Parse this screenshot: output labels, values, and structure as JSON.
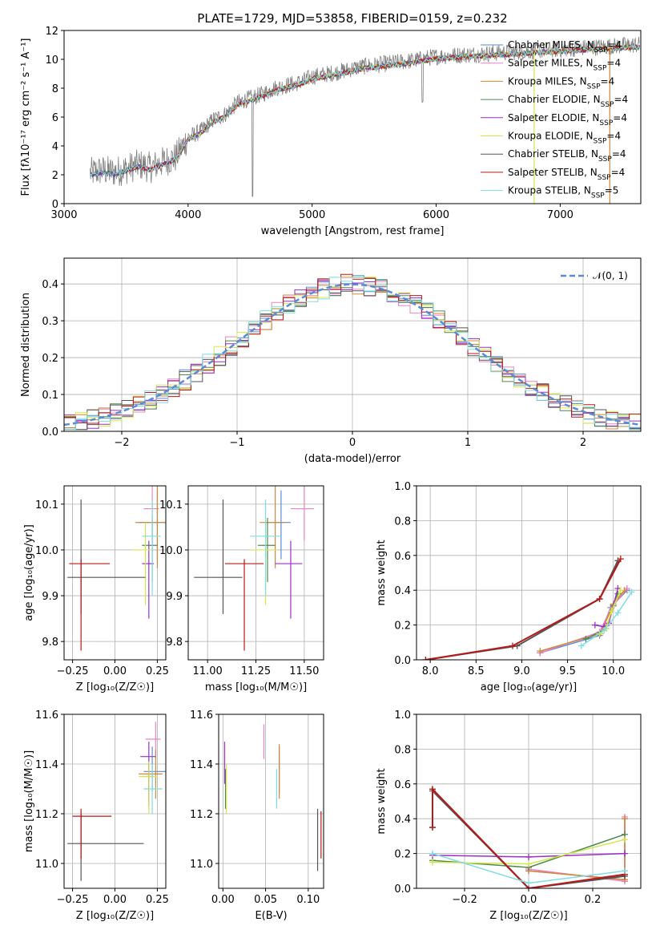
{
  "title": "PLATE=1729, MJD=53858, FIBERID=0159, z=0.232",
  "colors": {
    "Chabrier MILES": "#5b8bd6",
    "Salpeter MILES": "#ee82c4",
    "Kroupa MILES": "#d2873a",
    "Chabrier ELODIE": "#4f8a4f",
    "Salpeter ELODIE": "#9a2fc9",
    "Kroupa ELODIE": "#d4e84a",
    "Chabrier STELIB": "#555555",
    "Salpeter STELIB": "#b81818",
    "Kroupa STELIB": "#7fdde3",
    "gaussian": "#5b8bd6"
  },
  "chart_data": [
    {
      "id": "spectrum",
      "type": "line",
      "title": "PLATE=1729, MJD=53858, FIBERID=0159, z=0.232",
      "xlabel": "wavelength [Angstrom, rest frame]",
      "ylabel": "Flux [fλ10⁻¹⁷ erg cm⁻² s⁻¹ A⁻¹]",
      "xlim": [
        3000,
        7650
      ],
      "ylim": [
        0,
        12
      ],
      "xticks": [
        "3000",
        "4000",
        "5000",
        "6000",
        "7000"
      ],
      "yticks": [
        "0",
        "2",
        "4",
        "6",
        "8",
        "10",
        "12"
      ],
      "grid": false,
      "legend_position": "right",
      "legend": [
        "Chabrier MILES, N_SSP=4",
        "Salpeter MILES, N_SSP=4",
        "Kroupa MILES, N_SSP=4",
        "Chabrier ELODIE, N_SSP=4",
        "Salpeter ELODIE, N_SSP=4",
        "Kroupa ELODIE, N_SSP=4",
        "Chabrier STELIB, N_SSP=4",
        "Salpeter STELIB, N_SSP=4",
        "Kroupa STELIB, N_SSP=5"
      ],
      "data_envelope": {
        "x": [
          3200,
          3300,
          3400,
          3500,
          3600,
          3700,
          3800,
          3900,
          4000,
          4100,
          4200,
          4300,
          4400,
          4500,
          4600,
          4700,
          4800,
          4900,
          5000,
          5200,
          5400,
          5600,
          5800,
          6000,
          6200,
          6400,
          6600,
          6800,
          7000,
          7200,
          7400,
          7600
        ],
        "y": [
          2.1,
          2.3,
          2.2,
          2.4,
          2.7,
          2.5,
          2.9,
          3.2,
          4.6,
          5.0,
          5.8,
          6.2,
          7.0,
          7.3,
          7.6,
          8.0,
          8.2,
          8.4,
          8.8,
          9.1,
          9.5,
          9.7,
          9.9,
          10.2,
          10.3,
          10.4,
          10.5,
          10.6,
          10.7,
          10.8,
          10.9,
          11.0
        ]
      }
    },
    {
      "id": "residuals",
      "type": "line",
      "xlabel": "(data-model)/error",
      "ylabel": "Normed distribution",
      "xlim": [
        -2.5,
        2.5
      ],
      "ylim": [
        0,
        0.47
      ],
      "xticks": [
        "−2",
        "−1",
        "0",
        "1",
        "2"
      ],
      "yticks": [
        "0.0",
        "0.1",
        "0.2",
        "0.3",
        "0.4"
      ],
      "grid": true,
      "legend_position": "top-right",
      "legend": [
        "𝒩(0, 1)"
      ],
      "gaussian": {
        "mean": 0,
        "sigma": 1
      }
    },
    {
      "id": "age-vs-Z",
      "type": "scatter",
      "xlabel": "Z [log₁₀(Z/Z☉)]",
      "ylabel": "age  [log₁₀(age/yr)]",
      "xlim": [
        -0.3,
        0.3
      ],
      "ylim": [
        9.76,
        10.14
      ],
      "xticks": [
        "−0.25",
        "0.00",
        "0.25"
      ],
      "yticks": [
        "9.8",
        "9.9",
        "10.0",
        "10.1"
      ],
      "grid": true,
      "points": [
        {
          "model": "Chabrier MILES",
          "x": 0.25,
          "xerr": [
            0.12,
            0.05
          ],
          "y": 10.06,
          "yerr": [
            0.08,
            0.07
          ]
        },
        {
          "model": "Salpeter MILES",
          "x": 0.22,
          "xerr": [
            0.05,
            0.04
          ],
          "y": 10.09,
          "yerr": [
            0.07,
            0.05
          ]
        },
        {
          "model": "Kroupa MILES",
          "x": 0.25,
          "xerr": [
            0.13,
            0.05
          ],
          "y": 10.06,
          "yerr": [
            0.1,
            0.08
          ]
        },
        {
          "model": "Chabrier ELODIE",
          "x": 0.22,
          "xerr": [
            0.06,
            0.03
          ],
          "y": 10.01,
          "yerr": [
            0.08,
            0.06
          ]
        },
        {
          "model": "Salpeter ELODIE",
          "x": 0.2,
          "xerr": [
            0.04,
            0.03
          ],
          "y": 9.97,
          "yerr": [
            0.12,
            0.05
          ]
        },
        {
          "model": "Kroupa ELODIE",
          "x": 0.18,
          "xerr": [
            0.08,
            0.04
          ],
          "y": 10.0,
          "yerr": [
            0.12,
            0.06
          ]
        },
        {
          "model": "Chabrier STELIB",
          "x": -0.2,
          "xerr": [
            0.08,
            0.38
          ],
          "y": 9.94,
          "yerr": [
            0.08,
            0.17
          ]
        },
        {
          "model": "Salpeter STELIB",
          "x": -0.2,
          "xerr": [
            0.07,
            0.17
          ],
          "y": 9.97,
          "yerr": [
            0.19,
            0.01
          ]
        },
        {
          "model": "Kroupa STELIB",
          "x": 0.22,
          "xerr": [
            0.06,
            0.05
          ],
          "y": 10.03,
          "yerr": [
            0.13,
            0.08
          ]
        }
      ]
    },
    {
      "id": "age-vs-mass",
      "type": "scatter",
      "xlabel": "mass [log₁₀(M/M☉)]",
      "ylabel": "",
      "xlim": [
        10.9,
        11.6
      ],
      "ylim": [
        9.76,
        10.14
      ],
      "xticks": [
        "11.00",
        "11.25",
        "11.50"
      ],
      "yticks": [
        "9.8",
        "9.9",
        "10.0",
        "10.1"
      ],
      "grid": true,
      "points": [
        {
          "model": "Chabrier MILES",
          "x": 11.38,
          "xerr": [
            0.08,
            0.05
          ],
          "y": 10.06,
          "yerr": [
            0.08,
            0.07
          ]
        },
        {
          "model": "Salpeter MILES",
          "x": 11.5,
          "xerr": [
            0.07,
            0.05
          ],
          "y": 10.09,
          "yerr": [
            0.07,
            0.05
          ]
        },
        {
          "model": "Kroupa MILES",
          "x": 11.35,
          "xerr": [
            0.08,
            0.05
          ],
          "y": 10.06,
          "yerr": [
            0.1,
            0.08
          ]
        },
        {
          "model": "Chabrier ELODIE",
          "x": 11.31,
          "xerr": [
            0.05,
            0.04
          ],
          "y": 10.01,
          "yerr": [
            0.08,
            0.06
          ]
        },
        {
          "model": "Salpeter ELODIE",
          "x": 11.43,
          "xerr": [
            0.08,
            0.06
          ],
          "y": 9.97,
          "yerr": [
            0.12,
            0.05
          ]
        },
        {
          "model": "Kroupa ELODIE",
          "x": 11.3,
          "xerr": [
            0.08,
            0.06
          ],
          "y": 10.0,
          "yerr": [
            0.12,
            0.06
          ]
        },
        {
          "model": "Chabrier STELIB",
          "x": 11.08,
          "xerr": [
            0.15,
            0.1
          ],
          "y": 9.94,
          "yerr": [
            0.08,
            0.17
          ]
        },
        {
          "model": "Salpeter STELIB",
          "x": 11.19,
          "xerr": [
            0.1,
            0.1
          ],
          "y": 9.97,
          "yerr": [
            0.19,
            0.01
          ]
        },
        {
          "model": "Kroupa STELIB",
          "x": 11.3,
          "xerr": [
            0.08,
            0.08
          ],
          "y": 10.03,
          "yerr": [
            0.13,
            0.08
          ]
        }
      ]
    },
    {
      "id": "mass-weight-vs-age",
      "type": "line",
      "xlabel": "age  [log₁₀(age/yr)]",
      "ylabel": "mass weight",
      "xlim": [
        7.85,
        10.3
      ],
      "ylim": [
        0,
        1
      ],
      "xticks": [
        "8.0",
        "8.5",
        "9.0",
        "9.5",
        "10.0"
      ],
      "yticks": [
        "0.0",
        "0.2",
        "0.4",
        "0.6",
        "0.8",
        "1.0"
      ],
      "grid": true,
      "series": [
        {
          "model": "Chabrier MILES",
          "x": [
            9.2,
            9.85,
            9.97,
            10.15
          ],
          "y": [
            0.04,
            0.14,
            0.3,
            0.4
          ]
        },
        {
          "model": "Salpeter MILES",
          "x": [
            9.2,
            9.85,
            9.98,
            10.15
          ],
          "y": [
            0.04,
            0.16,
            0.3,
            0.41
          ]
        },
        {
          "model": "Kroupa MILES",
          "x": [
            9.2,
            9.86,
            10.0,
            10.12
          ],
          "y": [
            0.05,
            0.15,
            0.32,
            0.4
          ]
        },
        {
          "model": "Chabrier ELODIE",
          "x": [
            9.7,
            9.92,
            10.0,
            10.05
          ],
          "y": [
            0.12,
            0.18,
            0.31,
            0.38
          ]
        },
        {
          "model": "Salpeter ELODIE",
          "x": [
            9.8,
            9.9,
            9.95,
            10.05
          ],
          "y": [
            0.2,
            0.19,
            0.21,
            0.41
          ]
        },
        {
          "model": "Kroupa ELODIE",
          "x": [
            9.85,
            9.92,
            9.98,
            10.08
          ],
          "y": [
            0.15,
            0.18,
            0.28,
            0.4
          ]
        },
        {
          "model": "Chabrier STELIB",
          "x": [
            7.95,
            8.95,
            9.85,
            10.05
          ],
          "y": [
            0.0,
            0.08,
            0.35,
            0.57
          ]
        },
        {
          "model": "Salpeter STELIB",
          "x": [
            7.95,
            8.9,
            9.85,
            10.08
          ],
          "y": [
            0.0,
            0.08,
            0.35,
            0.58
          ]
        },
        {
          "model": "Kroupa STELIB",
          "x": [
            9.65,
            9.9,
            10.05,
            10.2
          ],
          "y": [
            0.08,
            0.17,
            0.27,
            0.39
          ]
        }
      ]
    },
    {
      "id": "mass-vs-Z",
      "type": "scatter",
      "xlabel": "Z [log₁₀(Z/Z☉)]",
      "ylabel": "mass [log₁₀(M/M☉)]",
      "xlim": [
        -0.3,
        0.3
      ],
      "ylim": [
        10.9,
        11.6
      ],
      "xticks": [
        "−0.25",
        "0.00",
        "0.25"
      ],
      "yticks": [
        "11.0",
        "11.2",
        "11.4",
        "11.6"
      ],
      "grid": true,
      "points": [
        {
          "model": "Chabrier MILES",
          "x": 0.22,
          "xerr": [
            0.05,
            0.08
          ],
          "y": 11.37,
          "yerr": [
            0.08,
            0.1
          ]
        },
        {
          "model": "Salpeter MILES",
          "x": 0.24,
          "xerr": [
            0.06,
            0.03
          ],
          "y": 11.5,
          "yerr": [
            0.08,
            0.07
          ]
        },
        {
          "model": "Kroupa MILES",
          "x": 0.24,
          "xerr": [
            0.1,
            0.04
          ],
          "y": 11.36,
          "yerr": [
            0.1,
            0.1
          ]
        },
        {
          "model": "Chabrier ELODIE",
          "x": 0.2,
          "xerr": [
            0.04,
            0.03
          ],
          "y": 11.35,
          "yerr": [
            0.1,
            0.05
          ]
        },
        {
          "model": "Salpeter ELODIE",
          "x": 0.2,
          "xerr": [
            0.05,
            0.04
          ],
          "y": 11.43,
          "yerr": [
            0.2,
            0.06
          ]
        },
        {
          "model": "Kroupa ELODIE",
          "x": 0.2,
          "xerr": [
            0.06,
            0.05
          ],
          "y": 11.35,
          "yerr": [
            0.15,
            0.06
          ]
        },
        {
          "model": "Chabrier STELIB",
          "x": -0.2,
          "xerr": [
            0.08,
            0.37
          ],
          "y": 11.08,
          "yerr": [
            0.15,
            0.12
          ]
        },
        {
          "model": "Salpeter STELIB",
          "x": -0.2,
          "xerr": [
            0.05,
            0.18
          ],
          "y": 11.19,
          "yerr": [
            0.17,
            0.03
          ]
        },
        {
          "model": "Kroupa STELIB",
          "x": 0.22,
          "xerr": [
            0.05,
            0.06
          ],
          "y": 11.3,
          "yerr": [
            0.1,
            0.1
          ]
        }
      ]
    },
    {
      "id": "mass-vs-ebv",
      "type": "scatter",
      "xlabel": "E(B-V)",
      "ylabel": "",
      "xlim": [
        -0.005,
        0.118
      ],
      "ylim": [
        10.9,
        11.6
      ],
      "xticks": [
        "0.00",
        "0.05",
        "0.10"
      ],
      "yticks": [
        "11.0",
        "11.2",
        "11.4",
        "11.6"
      ],
      "grid": true,
      "points": [
        {
          "model": "Chabrier MILES",
          "x": 0.066,
          "y": 11.36,
          "yerr": [
            0.08,
            0.11
          ]
        },
        {
          "model": "Salpeter MILES",
          "x": 0.048,
          "y": 11.48,
          "yerr": [
            0.06,
            0.08
          ]
        },
        {
          "model": "Kroupa MILES",
          "x": 0.066,
          "y": 11.36,
          "yerr": [
            0.1,
            0.12
          ]
        },
        {
          "model": "Chabrier ELODIE",
          "x": 0.003,
          "y": 11.3,
          "yerr": [
            0.08,
            0.08
          ]
        },
        {
          "model": "Salpeter ELODIE",
          "x": 0.002,
          "y": 11.42,
          "yerr": [
            0.1,
            0.07
          ]
        },
        {
          "model": "Kroupa ELODIE",
          "x": 0.004,
          "y": 11.3,
          "yerr": [
            0.1,
            0.1
          ]
        },
        {
          "model": "Chabrier STELIB",
          "x": 0.111,
          "y": 11.1,
          "yerr": [
            0.13,
            0.12
          ]
        },
        {
          "model": "Salpeter STELIB",
          "x": 0.115,
          "y": 11.1,
          "yerr": [
            0.08,
            0.11
          ]
        },
        {
          "model": "Kroupa STELIB",
          "x": 0.063,
          "y": 11.3,
          "yerr": [
            0.08,
            0.08
          ]
        }
      ]
    },
    {
      "id": "mass-weight-vs-Z",
      "type": "line",
      "xlabel": "Z [log₁₀(Z/Z☉)]",
      "ylabel": "mass weight",
      "xlim": [
        -0.35,
        0.35
      ],
      "ylim": [
        0,
        1
      ],
      "xticks": [
        "−0.2",
        "0.0",
        "0.2"
      ],
      "yticks": [
        "0.0",
        "0.2",
        "0.4",
        "0.6",
        "0.8",
        "1.0"
      ],
      "grid": true,
      "series": [
        {
          "model": "Chabrier MILES",
          "x": [
            0.0,
            0.3,
            0.3
          ],
          "y": [
            0.1,
            0.05,
            0.4
          ]
        },
        {
          "model": "Salpeter MILES",
          "x": [
            0.0,
            0.3,
            0.3
          ],
          "y": [
            0.11,
            0.04,
            0.41
          ]
        },
        {
          "model": "Kroupa MILES",
          "x": [
            0.0,
            0.3,
            0.3
          ],
          "y": [
            0.1,
            0.05,
            0.4
          ]
        },
        {
          "model": "Chabrier ELODIE",
          "x": [
            -0.3,
            0.0,
            0.3
          ],
          "y": [
            0.16,
            0.12,
            0.31
          ]
        },
        {
          "model": "Salpeter ELODIE",
          "x": [
            -0.3,
            0.0,
            0.3
          ],
          "y": [
            0.19,
            0.18,
            0.2
          ]
        },
        {
          "model": "Kroupa ELODIE",
          "x": [
            -0.3,
            0.0,
            0.3
          ],
          "y": [
            0.15,
            0.14,
            0.28
          ]
        },
        {
          "model": "Chabrier STELIB",
          "x": [
            -0.3,
            -0.3,
            0.0,
            0.3
          ],
          "y": [
            0.35,
            0.56,
            0.0,
            0.07
          ]
        },
        {
          "model": "Salpeter STELIB",
          "x": [
            -0.3,
            -0.3,
            0.0,
            0.3
          ],
          "y": [
            0.35,
            0.57,
            0.0,
            0.08
          ]
        },
        {
          "model": "Kroupa STELIB",
          "x": [
            -0.3,
            0.0,
            0.3
          ],
          "y": [
            0.2,
            0.03,
            0.1
          ]
        }
      ]
    }
  ]
}
